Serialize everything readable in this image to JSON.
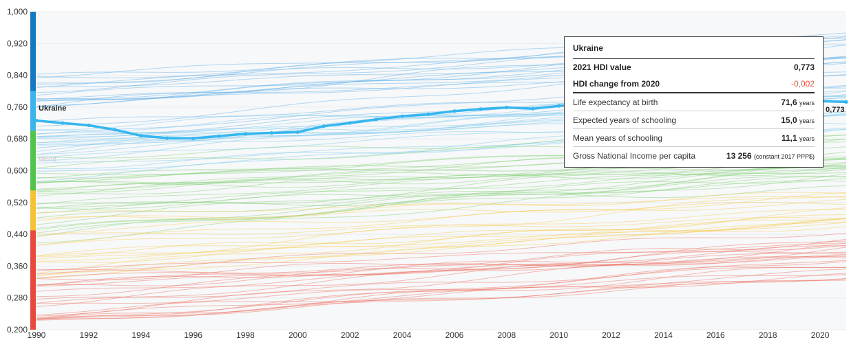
{
  "chart_data": {
    "type": "line",
    "x": [
      1990,
      1991,
      1992,
      1993,
      1994,
      1995,
      1996,
      1997,
      1998,
      1999,
      2000,
      2001,
      2002,
      2003,
      2004,
      2005,
      2006,
      2007,
      2008,
      2009,
      2010,
      2011,
      2012,
      2013,
      2014,
      2015,
      2016,
      2017,
      2018,
      2019,
      2020,
      2021
    ],
    "x_ticks": [
      "1990",
      "1992",
      "1994",
      "1996",
      "1998",
      "2000",
      "2002",
      "2004",
      "2006",
      "2008",
      "2010",
      "2012",
      "2014",
      "2016",
      "2018",
      "2020"
    ],
    "y_ticks": [
      "0,200",
      "0,280",
      "0,360",
      "0,440",
      "0,520",
      "0,600",
      "0,680",
      "0,760",
      "0,840",
      "0,920",
      "1,000"
    ],
    "ylim": [
      0.2,
      1.0
    ],
    "xlim": [
      1990,
      2021
    ],
    "highlight": {
      "name": "Ukraine",
      "color": "#35b6ef",
      "values": [
        0.726,
        0.72,
        0.714,
        0.703,
        0.688,
        0.682,
        0.681,
        0.687,
        0.693,
        0.695,
        0.697,
        0.712,
        0.72,
        0.729,
        0.737,
        0.742,
        0.75,
        0.755,
        0.759,
        0.756,
        0.763,
        0.768,
        0.773,
        0.775,
        0.776,
        0.775,
        0.777,
        0.778,
        0.777,
        0.779,
        0.775,
        0.773
      ],
      "end_label": "0,773"
    },
    "reference_label": "World",
    "background_series_description": "many country HDI trajectories colored by HDI tier (blue very high, green high, yellow medium, red low)"
  },
  "color_scale": [
    {
      "from": 0.8,
      "to": 1.0,
      "color": "#1479c0"
    },
    {
      "from": 0.7,
      "to": 0.8,
      "color": "#3ab5ec"
    },
    {
      "from": 0.55,
      "to": 0.7,
      "color": "#52c44a"
    },
    {
      "from": 0.45,
      "to": 0.55,
      "color": "#f6c233"
    },
    {
      "from": 0.2,
      "to": 0.45,
      "color": "#e74a3b"
    }
  ],
  "tooltip": {
    "country": "Ukraine",
    "hdi_label": "2021 HDI value",
    "hdi_value": "0,773",
    "change_label": "HDI change from 2020",
    "change_value": "-0,002",
    "rows": [
      {
        "label": "Life expectancy at birth",
        "value": "71,6",
        "unit": "years"
      },
      {
        "label": "Expected years of schooling",
        "value": "15,0",
        "unit": "years"
      },
      {
        "label": "Mean years of schooling",
        "value": "11,1",
        "unit": "years"
      },
      {
        "label": "Gross National Income per capita",
        "value": "13 256",
        "unit": "(constant 2017 PPP$)"
      }
    ]
  }
}
